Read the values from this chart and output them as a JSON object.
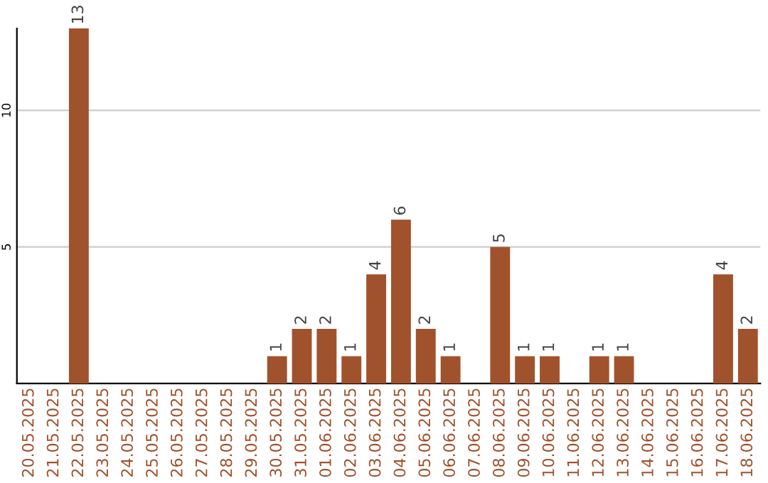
{
  "chart_data": {
    "type": "bar",
    "categories": [
      "20.05.2025",
      "21.05.2025",
      "22.05.2025",
      "23.05.2025",
      "24.05.2025",
      "25.05.2025",
      "26.05.2025",
      "27.05.2025",
      "28.05.2025",
      "29.05.2025",
      "30.05.2025",
      "31.05.2025",
      "01.06.2025",
      "02.06.2025",
      "03.06.2025",
      "04.06.2025",
      "05.06.2025",
      "06.06.2025",
      "07.06.2025",
      "08.06.2025",
      "09.06.2025",
      "10.06.2025",
      "11.06.2025",
      "12.06.2025",
      "13.06.2025",
      "14.06.2025",
      "15.06.2025",
      "16.06.2025",
      "17.06.2025",
      "18.06.2025"
    ],
    "values": [
      0,
      0,
      13,
      0,
      0,
      0,
      0,
      0,
      0,
      0,
      1,
      2,
      2,
      1,
      4,
      6,
      2,
      1,
      0,
      5,
      1,
      1,
      0,
      1,
      1,
      0,
      0,
      0,
      4,
      2
    ],
    "value_labels": [
      null,
      null,
      "13",
      null,
      null,
      null,
      null,
      null,
      null,
      null,
      "1",
      "2",
      "2",
      "1",
      "4",
      "6",
      "2",
      "1",
      null,
      "5",
      "1",
      "1",
      null,
      "1",
      "1",
      null,
      null,
      null,
      "4",
      "2"
    ],
    "color": "#a0522d",
    "ylim": [
      0,
      13
    ],
    "yticks": [
      5,
      10
    ],
    "grid": "y",
    "legend": false
  }
}
